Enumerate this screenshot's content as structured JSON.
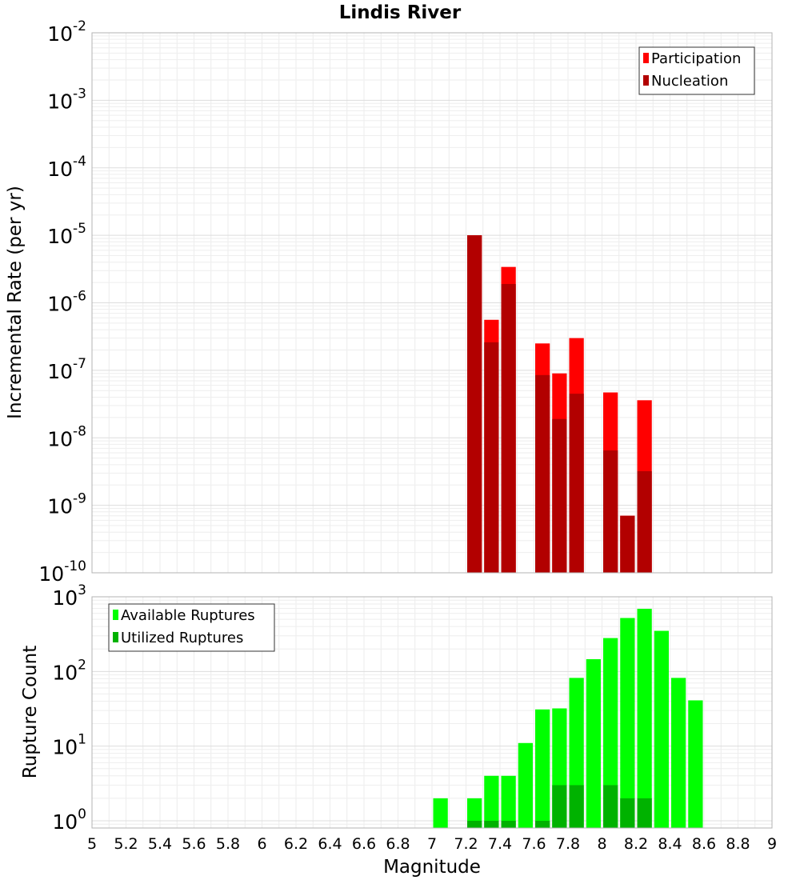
{
  "chart_data": [
    {
      "type": "bar",
      "title": "Lindis River",
      "xlabel": "",
      "ylabel": "Incremental Rate (per yr)",
      "yscale": "log",
      "xlim": [
        5,
        9
      ],
      "ylim": [
        1e-10,
        0.01
      ],
      "bar_width": 0.1,
      "grid": true,
      "legend_position": "top-right",
      "y_ticks": [
        {
          "base": "10",
          "exp": "-2"
        },
        {
          "base": "10",
          "exp": "-3"
        },
        {
          "base": "10",
          "exp": "-4"
        },
        {
          "base": "10",
          "exp": "-5"
        },
        {
          "base": "10",
          "exp": "-6"
        },
        {
          "base": "10",
          "exp": "-7"
        },
        {
          "base": "10",
          "exp": "-8"
        },
        {
          "base": "10",
          "exp": "-9"
        },
        {
          "base": "10",
          "exp": "-10"
        }
      ],
      "series": [
        {
          "name": "Participation",
          "color": "#ff0000",
          "x": [
            7.25,
            7.35,
            7.45,
            7.65,
            7.75,
            7.85,
            8.05,
            8.15,
            8.25
          ],
          "values": [
            1e-05,
            5.6e-07,
            3.4e-06,
            2.5e-07,
            9e-08,
            3e-07,
            4.7e-08,
            7e-10,
            3.6e-08
          ]
        },
        {
          "name": "Nucleation",
          "color": "#b20000",
          "x": [
            7.25,
            7.35,
            7.45,
            7.65,
            7.75,
            7.85,
            8.05,
            8.15,
            8.25
          ],
          "values": [
            1e-05,
            2.6e-07,
            1.9e-06,
            8.5e-08,
            1.9e-08,
            4.5e-08,
            6.5e-09,
            7e-10,
            3.2e-09
          ]
        }
      ]
    },
    {
      "type": "bar",
      "title": "",
      "xlabel": "Magnitude",
      "ylabel": "Rupture Count",
      "yscale": "log",
      "xlim": [
        5,
        9
      ],
      "ylim": [
        0.8,
        1000
      ],
      "bar_width": 0.1,
      "grid": true,
      "legend_position": "top-left",
      "x_ticks": [
        "5",
        "5.2",
        "5.4",
        "5.6",
        "5.8",
        "6",
        "6.2",
        "6.4",
        "6.6",
        "6.8",
        "7",
        "7.2",
        "7.4",
        "7.6",
        "7.8",
        "8",
        "8.2",
        "8.4",
        "8.6",
        "8.8",
        "9"
      ],
      "y_ticks": [
        {
          "base": "10",
          "exp": "3"
        },
        {
          "base": "10",
          "exp": "2"
        },
        {
          "base": "10",
          "exp": "1"
        },
        {
          "base": "10",
          "exp": "0"
        }
      ],
      "series": [
        {
          "name": "Available Ruptures",
          "color": "#00ff00",
          "x": [
            7.05,
            7.25,
            7.35,
            7.45,
            7.55,
            7.65,
            7.75,
            7.85,
            7.95,
            8.05,
            8.15,
            8.25,
            8.35,
            8.45,
            8.55
          ],
          "values": [
            2,
            2,
            4,
            4,
            11,
            31,
            32,
            82,
            146,
            280,
            520,
            690,
            350,
            82,
            41
          ]
        },
        {
          "name": "Utilized Ruptures",
          "color": "#00b200",
          "x": [
            7.25,
            7.35,
            7.45,
            7.65,
            7.75,
            7.85,
            8.05,
            8.15,
            8.25
          ],
          "values": [
            1,
            1,
            1,
            1,
            3,
            3,
            3,
            2,
            2
          ]
        }
      ]
    }
  ]
}
